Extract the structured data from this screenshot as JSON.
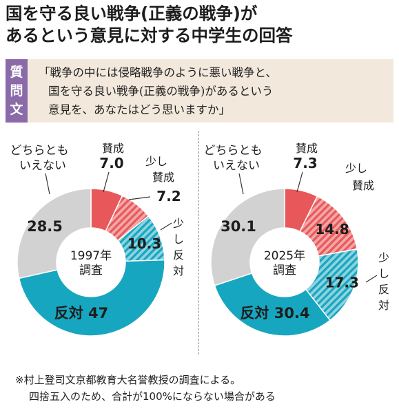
{
  "title": {
    "line1": "国を守る良い戦争(正義の戦争)が",
    "line2": "あるという意見に対する中学生の回答"
  },
  "question": {
    "label_line1": "質",
    "label_line2": "問",
    "label_line3": "文",
    "line1": "「戦争の中には侵略戦争のように悪い戦争と、",
    "line2": "国を守る良い戦争(正義の戦争)があるという",
    "line3": "意見を、あなたはどう思いますか」"
  },
  "footnote": {
    "line1": "※村上登司文京都教育大名誉教授の調査による。",
    "line2": "四捨五入のため、合計が100%にならない場合がある"
  },
  "colors": {
    "agree": "#e8585a",
    "somewhat_agree": "#e8585a",
    "somewhat_oppose": "#17a6bf",
    "oppose": "#17a6bf",
    "neutral": "#d2d2d2"
  },
  "chart_data": [
    {
      "type": "pie",
      "center_label_line1": "1997年",
      "center_label_line2": "調査",
      "categories": [
        "賛成",
        "少し賛成",
        "少し反対",
        "反対",
        "どちらともいえない"
      ],
      "values": [
        7.0,
        7.2,
        10.3,
        47,
        28.5
      ],
      "labels": {
        "agree_name": "賛成",
        "agree_value": "7.0",
        "sagree_name1": "少し",
        "sagree_name2": "賛成",
        "sagree_value": "7.2",
        "soppose_name1": "少",
        "soppose_name2": "し",
        "soppose_name3": "反",
        "soppose_name4": "対",
        "soppose_value": "10.3",
        "oppose_text": "反対 47",
        "neutral_name1": "どちらとも",
        "neutral_name2": "いえない",
        "neutral_value": "28.5"
      }
    },
    {
      "type": "pie",
      "center_label_line1": "2025年",
      "center_label_line2": "調査",
      "categories": [
        "賛成",
        "少し賛成",
        "少し反対",
        "反対",
        "どちらともいえない"
      ],
      "values": [
        7.3,
        14.8,
        17.3,
        30.4,
        30.1
      ],
      "labels": {
        "agree_name": "賛成",
        "agree_value": "7.3",
        "sagree_name1": "少し",
        "sagree_name2": "賛成",
        "sagree_value": "14.8",
        "soppose_name1": "少",
        "soppose_name2": "し",
        "soppose_name3": "反",
        "soppose_name4": "対",
        "soppose_value": "17.3",
        "oppose_text": "反対 30.4",
        "neutral_name1": "どちらとも",
        "neutral_name2": "いえない",
        "neutral_value": "30.1"
      }
    }
  ]
}
